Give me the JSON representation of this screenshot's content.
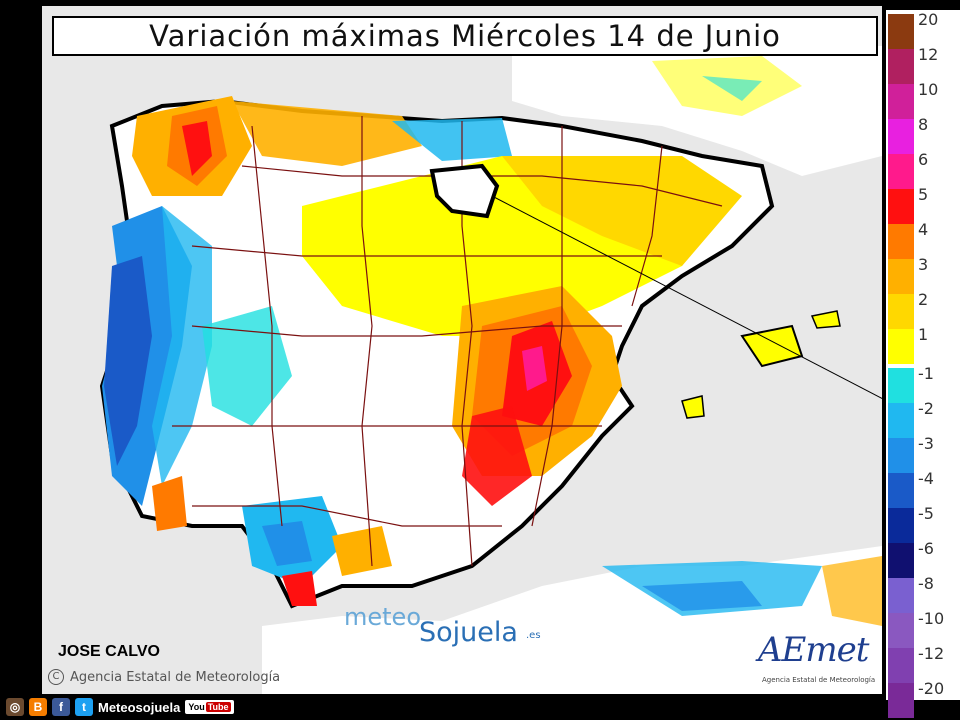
{
  "title": "Variación máximas Miércoles 14 de Junio",
  "legend": {
    "items": [
      {
        "label": "20",
        "color": "#8b3a10"
      },
      {
        "label": "12",
        "color": "#b02060"
      },
      {
        "label": "10",
        "color": "#d0209a"
      },
      {
        "label": "8",
        "color": "#e820e0"
      },
      {
        "label": "6",
        "color": "#ff1a8c"
      },
      {
        "label": "5",
        "color": "#ff1010"
      },
      {
        "label": "4",
        "color": "#ff7a00"
      },
      {
        "label": "3",
        "color": "#ffb000"
      },
      {
        "label": "2",
        "color": "#ffd800"
      },
      {
        "label": "1",
        "color": "#ffff00"
      },
      {
        "label": "-1",
        "color": "#20e0e0"
      },
      {
        "label": "-2",
        "color": "#20b8f0"
      },
      {
        "label": "-3",
        "color": "#2090e8"
      },
      {
        "label": "-4",
        "color": "#1a5ac8"
      },
      {
        "label": "-5",
        "color": "#0a2a9a"
      },
      {
        "label": "-6",
        "color": "#101070"
      },
      {
        "label": "-8",
        "color": "#7a60d0"
      },
      {
        "label": "-10",
        "color": "#8a58c0"
      },
      {
        "label": "-12",
        "color": "#8040b0"
      },
      {
        "label": "-20",
        "color": "#7a2a98"
      }
    ]
  },
  "author": "JOSE CALVO",
  "agency": "Agencia Estatal de Meteorología",
  "agency_symbol": "C",
  "watermark": {
    "part1": "meteo",
    "part2": "Sojuela",
    "tld": ".es"
  },
  "logo": {
    "name": "AEmet",
    "sub": "Agencia Estatal de Meteorología"
  },
  "social": {
    "brand": "Meteosojuela",
    "youtube": "You",
    "youtube2": "Tube",
    "icons": [
      "instagram-icon",
      "blogger-icon",
      "facebook-icon",
      "twitter-icon"
    ],
    "letters": [
      "◎",
      "B",
      "f",
      "t"
    ]
  },
  "colors": {
    "sea": "#e8e8e8",
    "land": "#ffffff",
    "border": "#7a1010",
    "coast": "#000000"
  }
}
